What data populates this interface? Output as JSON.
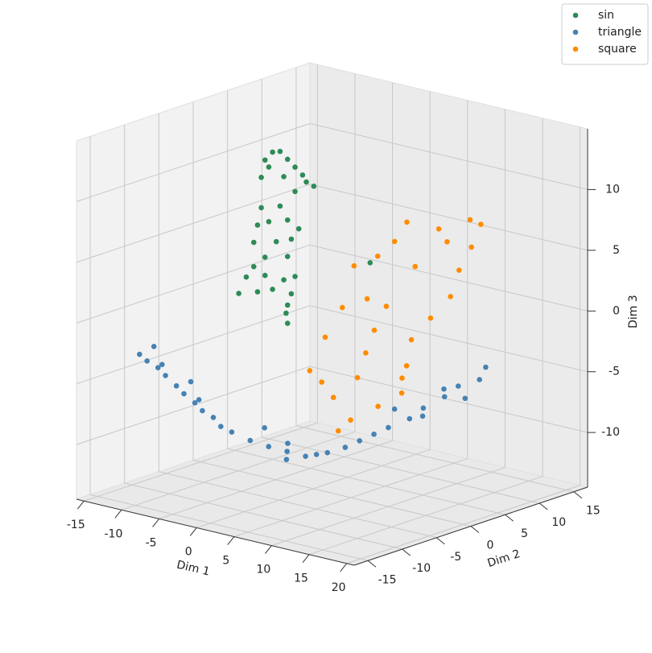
{
  "chart_data": {
    "type": "scatter",
    "xlabel": "Dim 1",
    "ylabel": "Dim 2",
    "zlabel": "Dim 3",
    "xlim": [
      -16,
      21
    ],
    "ylim": [
      -17,
      17
    ],
    "zlim": [
      -14.5,
      15
    ],
    "xticks": [
      -15,
      -10,
      -5,
      0,
      5,
      10,
      15,
      20
    ],
    "yticks": [
      -15,
      -10,
      -5,
      0,
      5,
      10,
      15
    ],
    "zticks": [
      -10,
      -5,
      0,
      5,
      10
    ],
    "grid": true,
    "legend": "upper right",
    "series": [
      {
        "name": "sin",
        "color": "#2e8b57",
        "x": [
          -9,
          -8,
          -7,
          -6,
          -5.5,
          -4.5,
          -10,
          -11,
          -11.5,
          -10.5,
          -8.5,
          -7,
          -11.5,
          -12,
          -10.5,
          -9,
          -8,
          -7.5,
          -9.5,
          -12.5,
          -11,
          -6.5,
          -8,
          -13.5,
          -12.5,
          -11,
          -10,
          -8.5,
          -7,
          -7.5,
          -14.5,
          -12,
          -8,
          -8,
          -8.2,
          3
        ],
        "y": [
          5,
          5,
          5,
          5,
          5,
          5,
          5,
          5,
          5,
          5,
          5,
          5,
          5,
          5,
          5,
          5,
          5,
          5,
          5,
          5,
          5,
          5,
          5,
          5,
          5,
          5,
          5,
          5,
          5,
          5,
          5,
          5,
          5,
          5,
          5,
          5
        ],
        "z": [
          11,
          10.5,
          10,
          9.5,
          9,
          8.8,
          10.8,
          10,
          8.5,
          9.5,
          9,
          8,
          6,
          4.5,
          5,
          6.5,
          5.5,
          4,
          3.5,
          3,
          2,
          5,
          2.5,
          0,
          1,
          0.5,
          -0.5,
          0.5,
          1,
          -0.5,
          -1.5,
          -1,
          -1.5,
          -3,
          -2.2,
          3.6
        ]
      },
      {
        "name": "triangle",
        "color": "#4682b4",
        "x": [
          -14,
          -13,
          -12,
          -11,
          -10,
          -9,
          -8,
          -7,
          -6,
          -5,
          -13,
          -11,
          -9,
          -7,
          -4,
          -2,
          0,
          2,
          4,
          5,
          6,
          3,
          -1,
          1,
          7,
          8,
          9,
          10,
          11,
          11,
          12,
          12,
          13,
          12,
          10,
          9,
          12,
          11
        ],
        "y": [
          -10,
          -10,
          -9.5,
          -9.5,
          -9,
          -9,
          -8.5,
          -8.5,
          -8,
          -8,
          -9,
          -10,
          -8,
          -9,
          -7.5,
          -7,
          -6.5,
          -6,
          -5.5,
          -5,
          -4.5,
          -7,
          -6,
          -5,
          -3,
          -2,
          -1,
          0,
          2,
          4,
          6,
          8,
          10,
          9,
          5,
          2,
          12,
          7
        ],
        "z": [
          -3.6,
          -4,
          -4.5,
          -5,
          -5.8,
          -6.3,
          -7,
          -7.5,
          -8,
          -8.6,
          -3,
          -4,
          -5.5,
          -6.5,
          -9,
          -9.5,
          -9.8,
          -10,
          -10.2,
          -10,
          -9.8,
          -9,
          -8.5,
          -11,
          -9.5,
          -9,
          -8.5,
          -8,
          -7.5,
          -7,
          -6.3,
          -5.8,
          -5.5,
          -7,
          -8,
          -7,
          -5,
          -6
        ]
      },
      {
        "name": "square",
        "color": "#ff8c00",
        "x": [
          -2.3,
          -0.7,
          2.5,
          3.6,
          6.3,
          9,
          11.1,
          14.9,
          18.6,
          20.5,
          19.7,
          17.6,
          16,
          13.8,
          11.7,
          10.6,
          9.5,
          6.8,
          3.6,
          1.5,
          0.4,
          -0.7,
          5.8,
          6.3,
          4.7,
          7.9,
          12.2,
          16,
          3.6,
          10
        ],
        "y": [
          2,
          2.5,
          1.5,
          2,
          2.5,
          2,
          1.5,
          2,
          2.5,
          2,
          1.5,
          2,
          2.5,
          2,
          1.5,
          2,
          2.5,
          2,
          1.5,
          2,
          2.5,
          2,
          1.5,
          2,
          2.5,
          2,
          1.5,
          2,
          2.5,
          2
        ],
        "z": [
          -5.5,
          -2.6,
          0.5,
          4,
          5.1,
          6.8,
          8.8,
          8.7,
          9.9,
          9.9,
          8,
          5.7,
          3.2,
          1.2,
          -0.8,
          -3.2,
          -5.7,
          -7.1,
          -8.6,
          -9.9,
          -7.4,
          -6.2,
          1.7,
          -0.9,
          -3.1,
          1.3,
          5.3,
          7.8,
          -5.3,
          -4.3
        ]
      }
    ]
  }
}
